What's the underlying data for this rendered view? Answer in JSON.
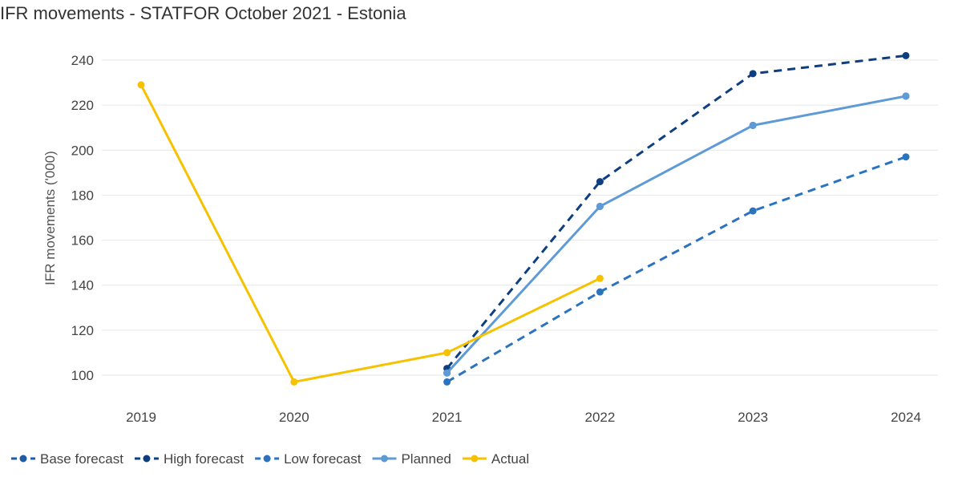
{
  "chart_data": {
    "type": "line",
    "title": "IFR movements - STATFOR October 2021 - Estonia",
    "xlabel": "",
    "ylabel": "IFR movements ('000)",
    "categories": [
      "2019",
      "2020",
      "2021",
      "2022",
      "2023",
      "2024"
    ],
    "ylim": [
      90,
      245
    ],
    "yticks": [
      100,
      120,
      140,
      160,
      180,
      200,
      220,
      240
    ],
    "grid": true,
    "legend_position": "bottom-left",
    "series": [
      {
        "name": "Base forecast",
        "color": "#1f5ca8",
        "dashed": true,
        "show_line": false,
        "values": [
          null,
          null,
          101,
          175,
          211,
          224
        ]
      },
      {
        "name": "High forecast",
        "color": "#0d3f80",
        "dashed": true,
        "show_line": true,
        "values": [
          null,
          null,
          103,
          186,
          234,
          242
        ]
      },
      {
        "name": "Low forecast",
        "color": "#2b73bf",
        "dashed": true,
        "show_line": true,
        "values": [
          null,
          null,
          97,
          137,
          173,
          197
        ]
      },
      {
        "name": "Planned",
        "color": "#5e9bd6",
        "dashed": false,
        "show_line": true,
        "values": [
          null,
          null,
          101,
          175,
          211,
          224
        ]
      },
      {
        "name": "Actual",
        "color": "#f6c200",
        "dashed": false,
        "show_line": true,
        "values": [
          229,
          97,
          110,
          143,
          null,
          null
        ]
      }
    ]
  }
}
